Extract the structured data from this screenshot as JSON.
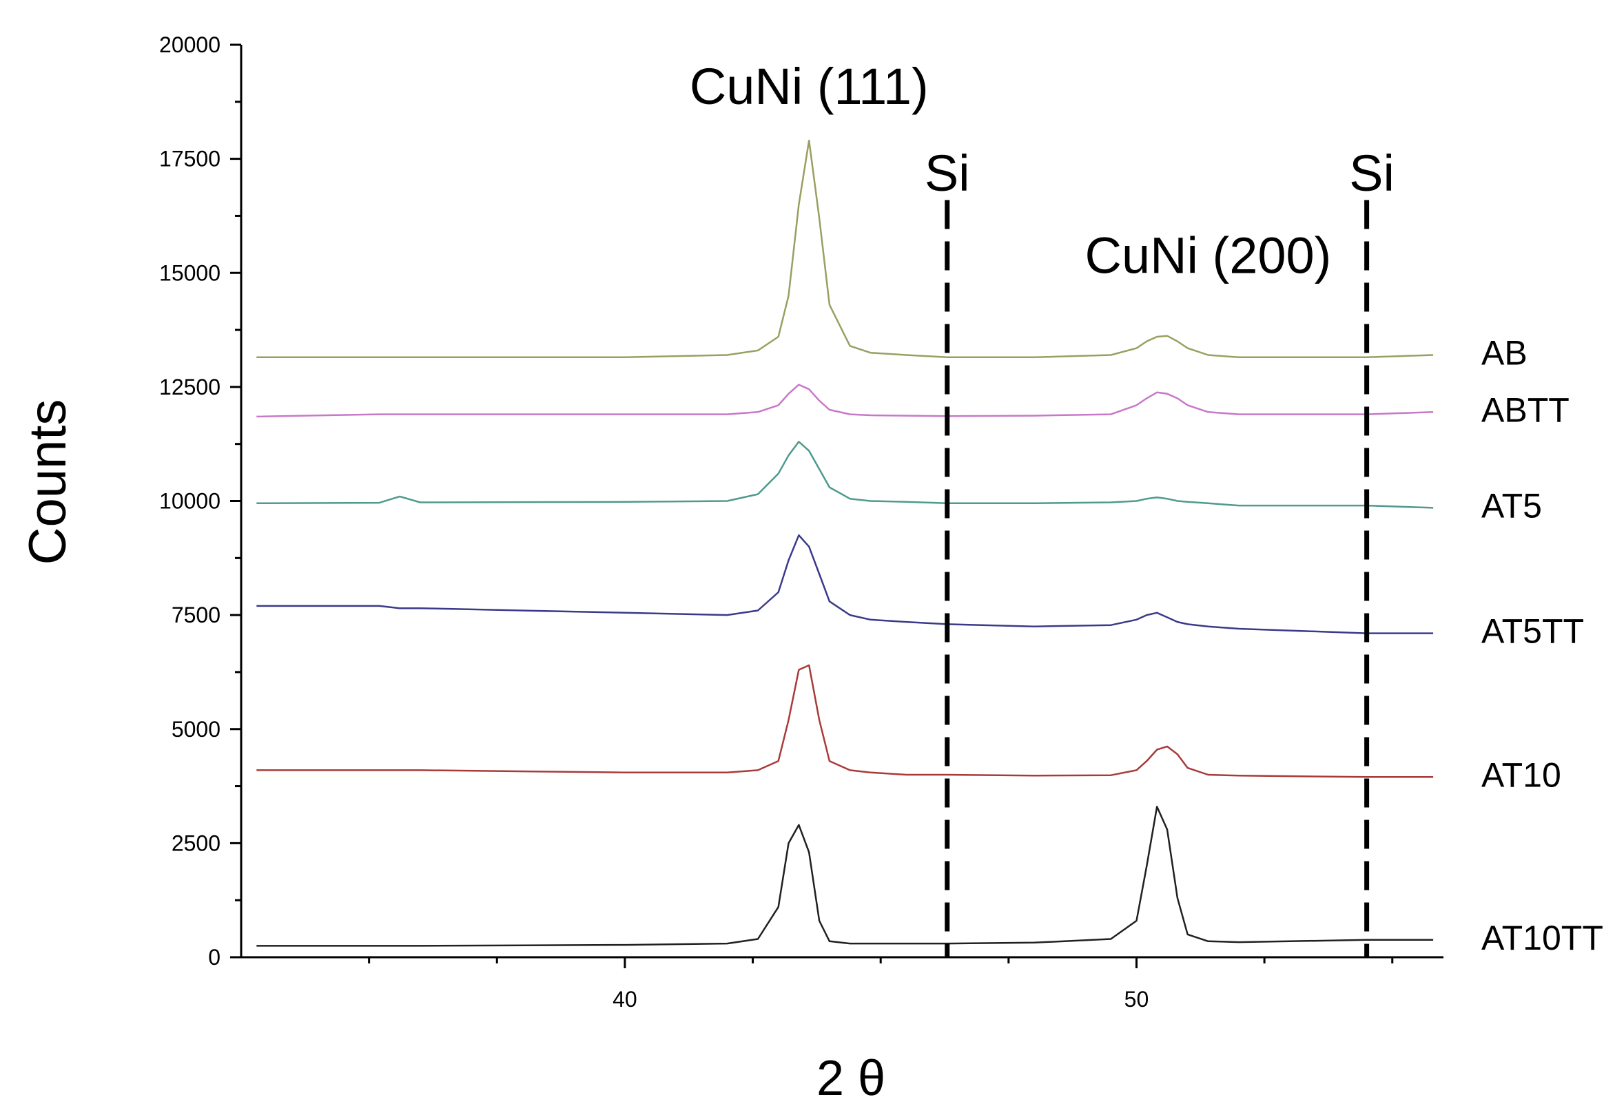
{
  "chart_data": {
    "type": "line",
    "xlabel": "2 θ",
    "ylabel": "Counts",
    "xlim": [
      32.5,
      56
    ],
    "ylim": [
      0,
      20000
    ],
    "x_ticks": [
      40,
      50
    ],
    "y_ticks": [
      0,
      2500,
      5000,
      7500,
      10000,
      12500,
      15000,
      17500,
      20000
    ],
    "grid": false,
    "legend": "none",
    "annotations": [
      {
        "text": "CuNi (111)",
        "x": 43.6,
        "y": 18700
      },
      {
        "text": "CuNi (200)",
        "x": 51.4,
        "y": 15000
      },
      {
        "text": "Si",
        "x": 46.3,
        "y": 16800
      },
      {
        "text": "Si",
        "x": 54.6,
        "y": 16800
      }
    ],
    "reference_lines": [
      {
        "x": 46.3,
        "style": "dashed",
        "color": "#000000"
      },
      {
        "x": 54.5,
        "style": "dashed",
        "color": "#000000"
      }
    ],
    "x": [
      32.8,
      35.2,
      35.6,
      36.0,
      40.0,
      42.0,
      42.6,
      43.0,
      43.2,
      43.4,
      43.6,
      43.8,
      44.0,
      44.4,
      44.8,
      45.5,
      46.3,
      48.0,
      49.5,
      50.0,
      50.2,
      50.4,
      50.6,
      50.8,
      51.0,
      51.4,
      52.0,
      54.5,
      55.8
    ],
    "series": [
      {
        "name": "AB",
        "color": "#9a9f60",
        "values": [
          13150,
          13150,
          13150,
          13150,
          13150,
          13200,
          13300,
          13600,
          14500,
          16500,
          17900,
          16200,
          14300,
          13400,
          13250,
          13200,
          13150,
          13150,
          13200,
          13350,
          13500,
          13600,
          13620,
          13500,
          13350,
          13200,
          13150,
          13150,
          13200
        ]
      },
      {
        "name": "ABTT",
        "color": "#c878c8",
        "values": [
          11850,
          11900,
          11900,
          11900,
          11900,
          11900,
          11950,
          12100,
          12350,
          12550,
          12450,
          12200,
          12000,
          11900,
          11880,
          11870,
          11860,
          11870,
          11900,
          12100,
          12250,
          12380,
          12350,
          12250,
          12100,
          11950,
          11900,
          11900,
          11950
        ]
      },
      {
        "name": "AT5",
        "color": "#4e9a8c",
        "values": [
          9950,
          9960,
          10100,
          9970,
          9980,
          10000,
          10150,
          10600,
          11000,
          11300,
          11100,
          10700,
          10300,
          10050,
          10000,
          9980,
          9950,
          9950,
          9970,
          10000,
          10050,
          10080,
          10050,
          10000,
          9980,
          9950,
          9900,
          9900,
          9850
        ]
      },
      {
        "name": "AT5TT",
        "color": "#3a3a8a",
        "values": [
          7700,
          7700,
          7650,
          7650,
          7550,
          7500,
          7600,
          8000,
          8700,
          9250,
          9000,
          8400,
          7800,
          7500,
          7400,
          7350,
          7300,
          7250,
          7280,
          7400,
          7500,
          7550,
          7450,
          7350,
          7300,
          7250,
          7200,
          7100,
          7100
        ]
      },
      {
        "name": "AT10",
        "color": "#a83a3a",
        "values": [
          4100,
          4100,
          4100,
          4100,
          4050,
          4050,
          4100,
          4300,
          5200,
          6300,
          6400,
          5200,
          4300,
          4100,
          4050,
          4000,
          4000,
          3980,
          3990,
          4100,
          4300,
          4550,
          4620,
          4450,
          4150,
          4000,
          3980,
          3950,
          3950
        ]
      },
      {
        "name": "AT10TT",
        "color": "#202020",
        "values": [
          250,
          250,
          250,
          250,
          270,
          300,
          400,
          1100,
          2500,
          2900,
          2300,
          800,
          350,
          300,
          300,
          300,
          300,
          320,
          400,
          800,
          2000,
          3300,
          2800,
          1300,
          500,
          350,
          330,
          380,
          380
        ]
      }
    ]
  }
}
